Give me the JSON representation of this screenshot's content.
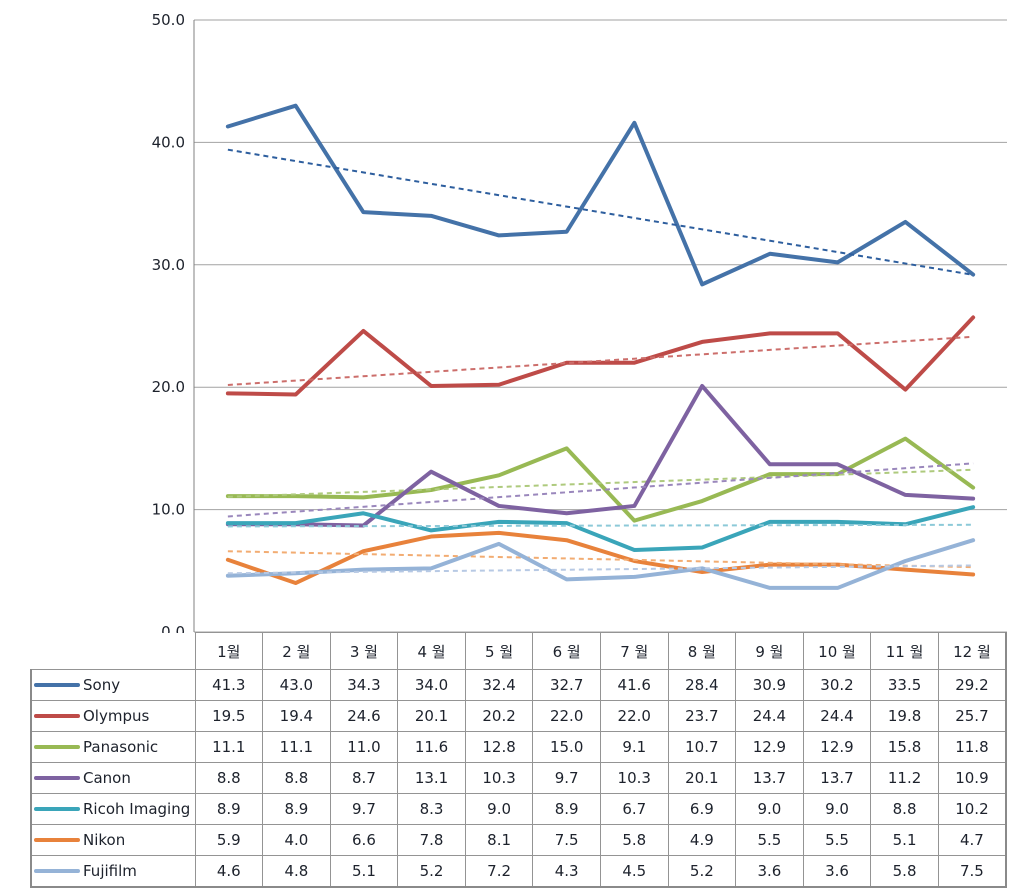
{
  "chart_data": {
    "type": "line",
    "title": "",
    "xlabel": "",
    "ylabel": "",
    "grid": true,
    "trendlines": true,
    "legend_position": "table-left",
    "categories": [
      "1월",
      "2 월",
      "3 월",
      "4 월",
      "5 월",
      "6 월",
      "7 월",
      "8 월",
      "9 월",
      "10 월",
      "11 월",
      "12 월"
    ],
    "y_axis": {
      "min": 0,
      "max": 50,
      "tick_step": 10,
      "tick_labels": [
        "0.0",
        "10.0",
        "20.0",
        "30.0",
        "40.0",
        "50.0"
      ]
    },
    "series": [
      {
        "name": "Sony",
        "color": "#4472A8",
        "trend_color": "#2D5E9E",
        "values": [
          41.3,
          43.0,
          34.3,
          34.0,
          32.4,
          32.7,
          41.6,
          28.4,
          30.9,
          30.2,
          33.5,
          29.2
        ]
      },
      {
        "name": "Olympus",
        "color": "#BE4B48",
        "trend_color": "#CC6E6B",
        "values": [
          19.5,
          19.4,
          24.6,
          20.1,
          20.2,
          22.0,
          22.0,
          23.7,
          24.4,
          24.4,
          19.8,
          25.7
        ]
      },
      {
        "name": "Panasonic",
        "color": "#98B954",
        "trend_color": "#AECA7D",
        "values": [
          11.1,
          11.1,
          11.0,
          11.6,
          12.8,
          15.0,
          9.1,
          10.7,
          12.9,
          12.9,
          15.8,
          11.8
        ]
      },
      {
        "name": "Canon",
        "color": "#7E62A1",
        "trend_color": "#9A87BC",
        "values": [
          8.8,
          8.8,
          8.7,
          13.1,
          10.3,
          9.7,
          10.3,
          20.1,
          13.7,
          13.7,
          11.2,
          10.9
        ]
      },
      {
        "name": "Ricoh Imaging",
        "color": "#3AA5B9",
        "trend_color": "#8CC9D8",
        "values": [
          8.9,
          8.9,
          9.7,
          8.3,
          9.0,
          8.9,
          6.7,
          6.9,
          9.0,
          9.0,
          8.8,
          10.2
        ]
      },
      {
        "name": "Nikon",
        "color": "#E8823B",
        "trend_color": "#F2AC72",
        "values": [
          5.9,
          4.0,
          6.6,
          7.8,
          8.1,
          7.5,
          5.8,
          4.9,
          5.5,
          5.5,
          5.1,
          4.7
        ]
      },
      {
        "name": "Fujifilm",
        "color": "#95B3D7",
        "trend_color": "#B7C9E4",
        "values": [
          4.6,
          4.8,
          5.1,
          5.2,
          7.2,
          4.3,
          4.5,
          5.2,
          3.6,
          3.6,
          5.8,
          7.5
        ]
      }
    ],
    "colors": {
      "gridline": "#A2A2A2",
      "axis": "#808080",
      "table_border": "#949494",
      "text": "#1d222c",
      "background": "#ffffff"
    }
  }
}
